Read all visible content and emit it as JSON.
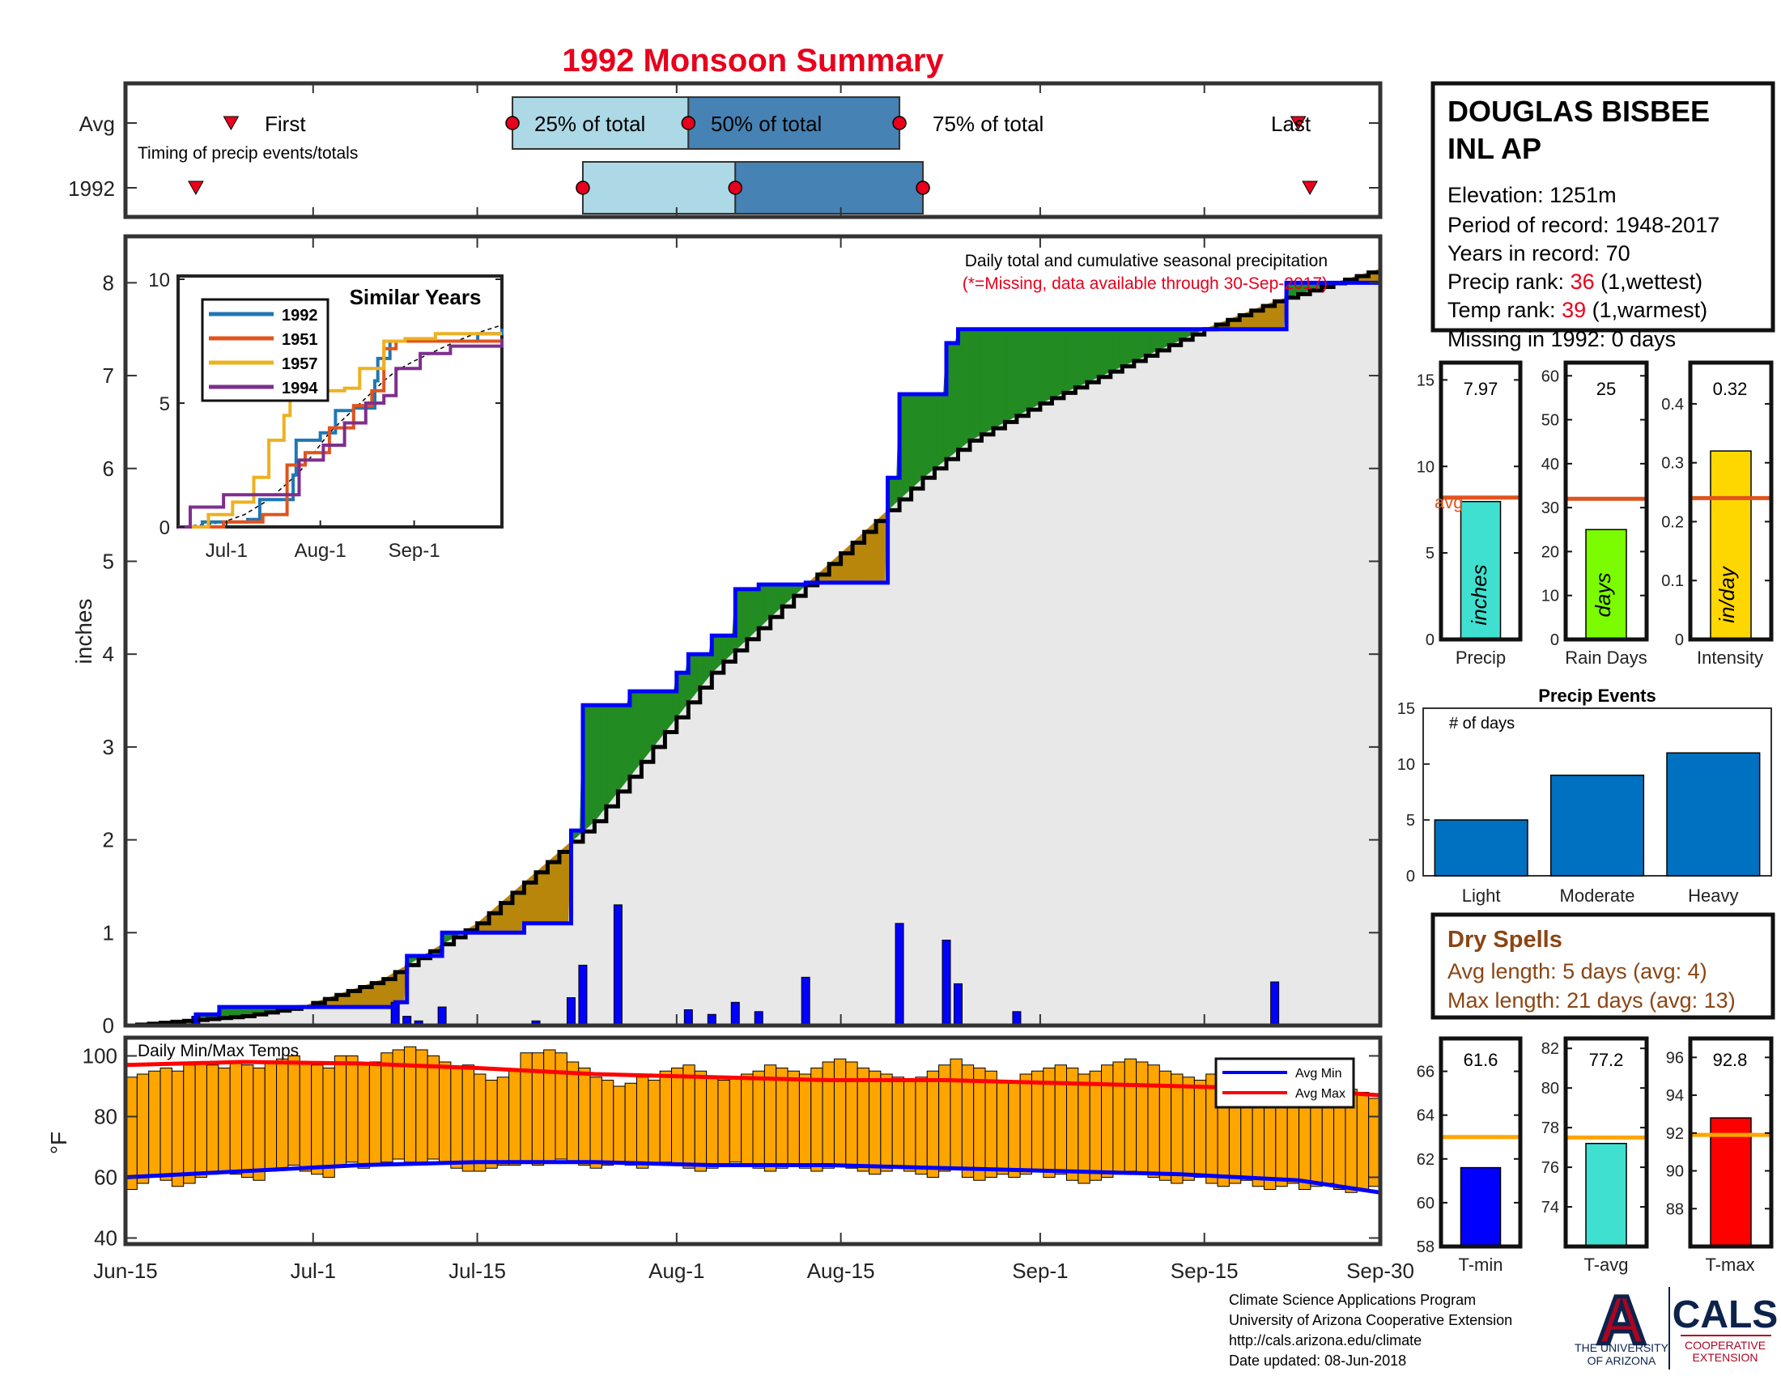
{
  "title": "1992 Monsoon Summary",
  "colors": {
    "title": "#e8001c",
    "blue_line": "#0000ff",
    "avg_line": "#000000",
    "surplus": "#b8860b",
    "deficit": "#228b22",
    "cum_fill": "#e8e8e8",
    "daily_bar": "#0000ff",
    "temp_bar": "#ffa500",
    "avg_min": "#0000ff",
    "avg_max": "#ff0000",
    "avg_ref": "#e0541e",
    "temp_ref": "#ffa500",
    "precip_bar": "#40e0d0",
    "raindays_bar": "#7cfc00",
    "intensity_bar": "#ffd700",
    "events_bar": "#0070c0",
    "tmin_bar": "#0000ff",
    "tavg_bar": "#40e0d0",
    "tmax_bar": "#ff0000",
    "marker": "#e8001c",
    "q_light": "#add8e6",
    "q_dark": "#4682b4",
    "brown_text": "#8b4513"
  },
  "timing": {
    "row_labels": [
      "Avg",
      "1992"
    ],
    "caption": "Timing of precip events/totals",
    "first_label": "First",
    "last_label": "Last",
    "q25_label": "25% of total",
    "q50_label": "50% of total",
    "q75_label": "75% of total"
  },
  "station": {
    "name_line1": "DOUGLAS BISBEE",
    "name_line2": "INL AP",
    "elevation": "Elevation: 1251m",
    "period": "Period of record: 1948-2017",
    "years": "Years in record: 70",
    "precip_rank_label": "Precip rank: ",
    "precip_rank_value": "36",
    "precip_rank_note": " (1,wettest)",
    "temp_rank_label": "Temp rank: ",
    "temp_rank_value": "39",
    "temp_rank_note": " (1,warmest)",
    "missing": "Missing in 1992: 0 days"
  },
  "main_plot": {
    "caption": "Daily total and cumulative seasonal precipitation",
    "missing_note": "(*=Missing, data available through 30-Sep-2017)",
    "ylabel": "inches"
  },
  "inset": {
    "title": "Similar Years",
    "legend": [
      "1992",
      "1951",
      "1957",
      "1994"
    ]
  },
  "temps_plot": {
    "caption": "Daily Min/Max Temps",
    "ylabel": "°F",
    "legend_min": "Avg Min",
    "legend_max": "Avg Max"
  },
  "stats": {
    "precip": {
      "value_label": "7.97",
      "unit": "inches",
      "xlabel": "Precip",
      "avg_label": "avg"
    },
    "raindays": {
      "value_label": "25",
      "unit": "days",
      "xlabel": "Rain Days"
    },
    "intensity": {
      "value_label": "0.32",
      "unit": "in/day",
      "xlabel": "Intensity"
    }
  },
  "events": {
    "title": "Precip Events",
    "ylabel": "# of days"
  },
  "dry_spells": {
    "title": "Dry Spells",
    "avg": "Avg length: 5 days (avg: 4)",
    "max": "Max length: 21 days (avg: 13)"
  },
  "temp_stats": {
    "tmin": {
      "value_label": "61.6",
      "xlabel": "T-min"
    },
    "tavg": {
      "value_label": "77.2",
      "xlabel": "T-avg"
    },
    "tmax": {
      "value_label": "92.8",
      "xlabel": "T-max"
    }
  },
  "footer": {
    "line1": "Climate Science Applications Program",
    "line2": "University of Arizona Cooperative Extension",
    "line3": "http://cals.arizona.edu/climate",
    "line4": " Date updated: 08-Jun-2018"
  },
  "logos": {
    "ua_letter": "A",
    "ua_text1": "THE UNIVERSITY",
    "ua_text2": "OF ARIZONA",
    "cals": "CALS",
    "cals_sub1": "COOPERATIVE",
    "cals_sub2": "EXTENSION"
  },
  "chart_data": [
    {
      "id": "timing",
      "type": "timeline",
      "x_range": [
        "Jun-15",
        "Sep-30"
      ],
      "rows": [
        {
          "name": "Avg",
          "first": "Jun-24",
          "q25": "Jul-18",
          "q50": "Aug-2",
          "q75": "Aug-20",
          "last": "Sep-23"
        },
        {
          "name": "1992",
          "first": "Jun-21",
          "q25": "Jul-24",
          "q50": "Aug-6",
          "q75": "Aug-22",
          "last": "Sep-24"
        }
      ]
    },
    {
      "id": "cumulative",
      "type": "area",
      "xlabel": "",
      "ylabel": "inches",
      "ylim": [
        0,
        8.5
      ],
      "yticks": [
        0,
        1,
        2,
        3,
        4,
        5,
        6,
        7,
        8
      ],
      "xticks": [
        "Jun-15",
        "Jul-1",
        "Jul-15",
        "Aug-1",
        "Aug-15",
        "Sep-1",
        "Sep-15",
        "Sep-30"
      ],
      "xtick_days": [
        0,
        16,
        30,
        47,
        61,
        78,
        92,
        107
      ],
      "avg_cumulative": {
        "day": [
          0,
          10,
          15,
          22,
          30,
          40,
          45,
          50,
          55,
          62,
          68,
          72,
          78,
          85,
          92,
          98,
          107
        ],
        "value": [
          0,
          0.1,
          0.2,
          0.5,
          1.1,
          2.2,
          3.0,
          3.8,
          4.4,
          5.2,
          5.9,
          6.3,
          6.7,
          7.1,
          7.5,
          7.8,
          8.15
        ]
      },
      "year_1992_cumulative": {
        "day": [
          0,
          6,
          8,
          23,
          24,
          27,
          34,
          38,
          39,
          42,
          43,
          47,
          48,
          50,
          52,
          54,
          58,
          65,
          66,
          70,
          71,
          76,
          84,
          85,
          99,
          107
        ],
        "value": [
          0,
          0.12,
          0.2,
          0.25,
          0.75,
          1.0,
          1.1,
          2.1,
          3.45,
          3.45,
          3.6,
          3.8,
          4.0,
          4.2,
          4.7,
          4.75,
          4.77,
          5.9,
          6.8,
          7.35,
          7.5,
          7.5,
          7.5,
          7.5,
          8.0,
          8.0
        ]
      },
      "daily_bars": {
        "day": [
          6,
          23,
          24,
          25,
          27,
          35,
          38,
          39,
          42,
          48,
          50,
          52,
          54,
          58,
          66,
          70,
          71,
          76,
          98
        ],
        "value": [
          0.1,
          0.25,
          0.1,
          0.05,
          0.2,
          0.05,
          0.3,
          0.65,
          1.3,
          0.17,
          0.12,
          0.25,
          0.15,
          0.52,
          1.1,
          0.92,
          0.45,
          0.15,
          0.47
        ]
      }
    },
    {
      "id": "similar_years",
      "type": "line",
      "title": "Similar Years",
      "ylim": [
        0,
        10
      ],
      "yticks": [
        0,
        5,
        10
      ],
      "xticks": [
        "Jul-1",
        "Aug-1",
        "Sep-1"
      ],
      "series": [
        {
          "name": "1992",
          "color": "#1f77b4",
          "day": [
            0,
            8,
            23,
            27,
            38,
            39,
            47,
            52,
            58,
            65,
            66,
            70,
            99,
            107
          ],
          "value": [
            0,
            0.2,
            0.3,
            1.1,
            2.1,
            3.5,
            3.8,
            4.7,
            4.8,
            5.9,
            6.8,
            7.5,
            7.8,
            8.0
          ]
        },
        {
          "name": "1951",
          "color": "#e0541e",
          "day": [
            0,
            15,
            28,
            36,
            42,
            50,
            58,
            64,
            68,
            72,
            80,
            107
          ],
          "value": [
            0,
            0.2,
            0.5,
            2.5,
            3.0,
            4.0,
            4.9,
            5.5,
            7.2,
            7.5,
            7.5,
            7.5
          ]
        },
        {
          "name": "1957",
          "color": "#edb120",
          "day": [
            0,
            10,
            18,
            25,
            30,
            35,
            37,
            45,
            55,
            60,
            68,
            75,
            85,
            107
          ],
          "value": [
            0,
            0.5,
            1.0,
            2.0,
            3.5,
            4.5,
            5.5,
            5.5,
            5.6,
            6.4,
            7.5,
            7.6,
            7.8,
            7.8
          ]
        },
        {
          "name": "1994",
          "color": "#7e2f8e",
          "day": [
            0,
            4,
            15,
            30,
            40,
            48,
            55,
            62,
            68,
            72,
            80,
            90,
            107
          ],
          "value": [
            0,
            0.8,
            1.3,
            1.3,
            2.7,
            3.3,
            4.2,
            5.0,
            5.3,
            6.4,
            7.0,
            7.3,
            7.6
          ]
        }
      ]
    },
    {
      "id": "temps",
      "type": "bar",
      "ylabel": "°F",
      "ylim": [
        38,
        106
      ],
      "yticks": [
        40,
        60,
        80,
        100
      ],
      "avg_max": {
        "day": [
          0,
          10,
          20,
          30,
          40,
          50,
          60,
          70,
          80,
          90,
          100,
          107
        ],
        "value": [
          97,
          98,
          97.5,
          96,
          94,
          93,
          92,
          92,
          91,
          90,
          89,
          87
        ]
      },
      "avg_min": {
        "day": [
          0,
          10,
          20,
          30,
          40,
          50,
          60,
          70,
          80,
          90,
          100,
          107
        ],
        "value": [
          60,
          62,
          64,
          65,
          65,
          64,
          64,
          63,
          62,
          61,
          59,
          55
        ]
      },
      "daily_max": [
        93,
        94,
        95,
        96,
        95,
        97,
        98,
        97,
        96,
        98,
        97,
        96,
        98,
        99,
        100,
        98,
        97,
        96,
        100,
        100,
        97,
        98,
        101,
        102,
        103,
        102,
        100,
        98,
        96,
        97,
        94,
        92,
        93,
        95,
        101,
        101,
        102,
        101,
        98,
        96,
        93,
        92,
        90,
        91,
        93,
        92,
        95,
        96,
        97,
        95,
        93,
        92,
        93,
        94,
        95,
        97,
        96,
        95,
        94,
        96,
        98,
        99,
        98,
        96,
        95,
        94,
        93,
        92,
        93,
        95,
        97,
        99,
        97,
        96,
        95,
        92,
        91,
        94,
        95,
        96,
        97,
        96,
        94,
        95,
        97,
        98,
        99,
        98,
        97,
        95,
        94,
        93,
        92,
        94,
        95,
        94,
        93,
        92,
        91,
        94,
        96,
        95,
        94,
        92,
        90,
        89,
        88,
        86
      ],
      "daily_min": [
        56,
        58,
        60,
        59,
        57,
        58,
        60,
        61,
        62,
        61,
        60,
        59,
        62,
        63,
        64,
        62,
        61,
        60,
        64,
        65,
        63,
        64,
        65,
        66,
        65,
        64,
        66,
        65,
        63,
        62,
        62,
        63,
        64,
        64,
        65,
        64,
        65,
        66,
        65,
        64,
        63,
        64,
        65,
        64,
        63,
        64,
        65,
        64,
        63,
        62,
        63,
        64,
        65,
        64,
        63,
        62,
        63,
        64,
        63,
        62,
        63,
        64,
        63,
        62,
        61,
        62,
        63,
        62,
        61,
        60,
        62,
        63,
        60,
        59,
        60,
        61,
        60,
        61,
        62,
        60,
        61,
        59,
        58,
        59,
        60,
        61,
        62,
        61,
        60,
        59,
        58,
        59,
        60,
        58,
        57,
        58,
        59,
        57,
        56,
        57,
        58,
        56,
        57,
        58,
        56,
        55,
        56,
        57
      ]
    },
    {
      "id": "precip_stat",
      "type": "bar",
      "values": [
        7.97
      ],
      "avg": 8.2,
      "ylim": [
        0,
        16
      ],
      "yticks": [
        0,
        5,
        10,
        15
      ]
    },
    {
      "id": "raindays_stat",
      "type": "bar",
      "values": [
        25
      ],
      "avg": 32,
      "ylim": [
        0,
        63
      ],
      "yticks": [
        0,
        10,
        20,
        30,
        40,
        50,
        60
      ]
    },
    {
      "id": "intensity_stat",
      "type": "bar",
      "values": [
        0.32
      ],
      "avg": 0.24,
      "ylim": [
        0,
        0.47
      ],
      "yticks": [
        0,
        0.1,
        0.2,
        0.3,
        0.4
      ]
    },
    {
      "id": "precip_events",
      "type": "bar",
      "title": "Precip Events",
      "ylabel": "# of days",
      "categories": [
        "Light",
        "Moderate",
        "Heavy"
      ],
      "values": [
        5,
        9,
        11
      ],
      "ylim": [
        0,
        15
      ],
      "yticks": [
        0,
        5,
        10,
        15
      ]
    },
    {
      "id": "tmin_stat",
      "type": "bar",
      "values": [
        61.6
      ],
      "avg": 63,
      "ylim": [
        58,
        67.5
      ],
      "yticks": [
        58,
        60,
        62,
        64,
        66
      ]
    },
    {
      "id": "tavg_stat",
      "type": "bar",
      "values": [
        77.2
      ],
      "avg": 77.5,
      "ylim": [
        72,
        82.5
      ],
      "yticks": [
        74,
        76,
        78,
        80,
        82
      ]
    },
    {
      "id": "tmax_stat",
      "type": "bar",
      "values": [
        92.8
      ],
      "avg": 91.9,
      "ylim": [
        86,
        97
      ],
      "yticks": [
        88,
        90,
        92,
        94,
        96
      ]
    }
  ]
}
